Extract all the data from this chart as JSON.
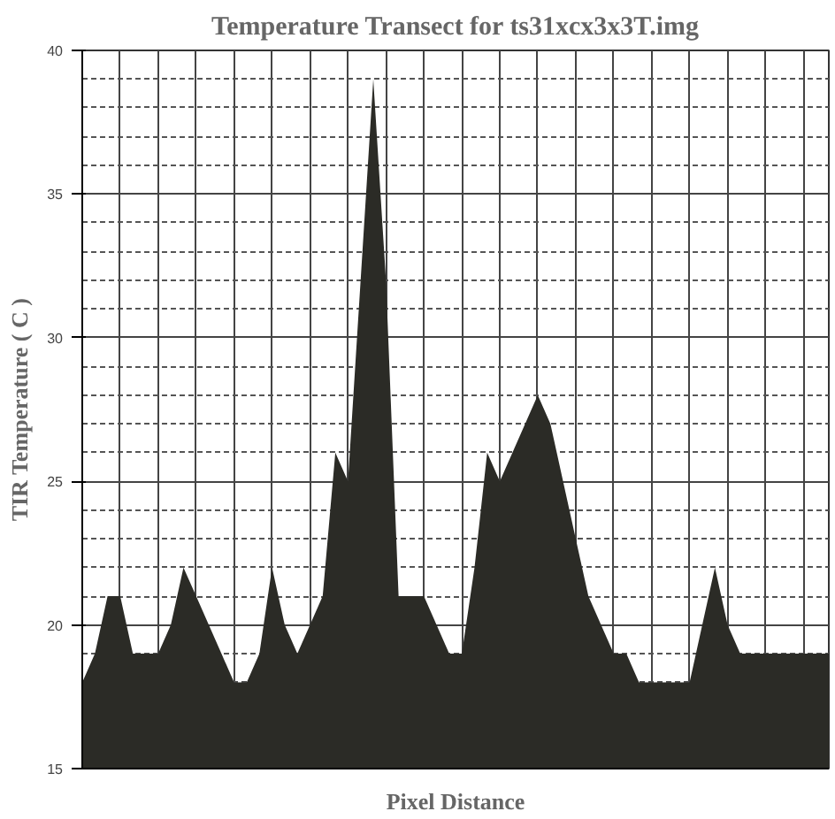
{
  "chart_data": {
    "type": "area",
    "title": "Temperature Transect for ts31xcx3x3T.img",
    "xlabel": "Pixel Distance",
    "ylabel": "TIR Temperature ( C )",
    "categories": [
      null,
      null,
      null,
      null,
      null,
      null,
      null,
      null,
      null,
      null,
      null,
      null,
      null,
      null,
      null,
      null,
      null,
      null,
      null,
      null,
      null,
      null,
      null,
      null,
      null,
      null,
      null,
      null,
      null,
      null,
      null,
      null,
      null,
      null,
      null,
      null,
      null,
      null,
      null,
      null,
      null,
      null,
      null,
      null,
      null,
      null,
      null,
      null,
      null,
      null,
      null,
      null,
      null,
      null,
      null,
      null,
      null,
      null,
      null,
      null
    ],
    "values": [
      18,
      19,
      21,
      21,
      19,
      19,
      19,
      20,
      22,
      21,
      20,
      19,
      18,
      18,
      19,
      22,
      20,
      19,
      20,
      21,
      26,
      25,
      32,
      39,
      32,
      21,
      21,
      21,
      20,
      19,
      19,
      22,
      26,
      25,
      26,
      27,
      28,
      27,
      25,
      23,
      21,
      20,
      19,
      19,
      18,
      18,
      18,
      18,
      18,
      20,
      22,
      20,
      19,
      19,
      19,
      19,
      19,
      19,
      19,
      19
    ],
    "color": "#2b2b26",
    "ylim": [
      15,
      40
    ],
    "yticks": [
      15,
      20,
      25,
      30,
      35,
      40
    ],
    "grid": true
  }
}
